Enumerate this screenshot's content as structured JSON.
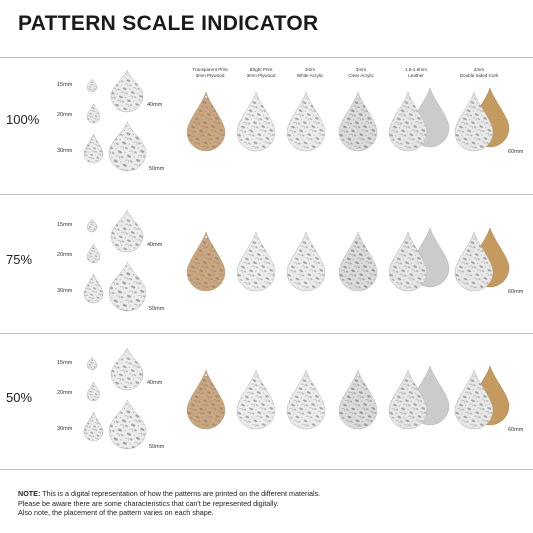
{
  "title": "PATTERN SCALE INDICATOR",
  "materials": [
    {
      "line1": "Transparent Print",
      "line2": "3mm Plywood",
      "color": "#c9a783"
    },
    {
      "line1": "Bright Print",
      "line2": "3mm Plywood",
      "color": "#ededed"
    },
    {
      "line1": "3mm",
      "line2": "White Acrylic",
      "color": "#ececec"
    },
    {
      "line1": "3mm",
      "line2": "Clear Acrylic",
      "color": "#dcdcdc"
    },
    {
      "line1": "1.6-1.8mm",
      "line2": "Leather",
      "color": "#e6e6e6"
    },
    {
      "line1": "2mm",
      "line2": "Double Sided Cork",
      "color": "#e8e8e8"
    }
  ],
  "sizes": [
    "15mm",
    "20mm",
    "30mm",
    "40mm",
    "50mm"
  ],
  "size_large": "60mm",
  "rows": [
    {
      "scale": "100%"
    },
    {
      "scale": "75%"
    },
    {
      "scale": "50%"
    }
  ],
  "colors": {
    "plywood": "#c9a783",
    "cork": "#c49a5f",
    "leather_backing": "#c9ccc8",
    "pattern_ink": "#8a8a8a"
  },
  "note": {
    "label": "NOTE:",
    "line1": "This is a digital representation of how the patterns are printed on the different materials.",
    "line2": "Please be aware there are some characteristics that can't be represented digitally.",
    "line3": "Also note, the placement of the pattern varies on each shape."
  }
}
